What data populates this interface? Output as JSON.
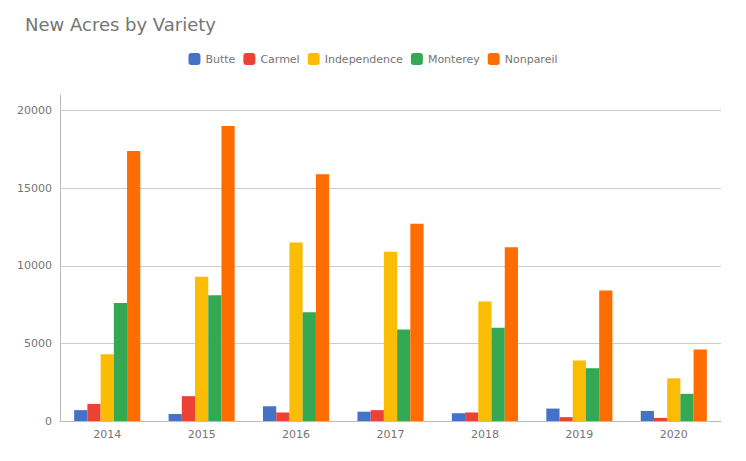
{
  "chart_data": {
    "type": "bar",
    "title": "New Acres by Variety",
    "categories": [
      "2014",
      "2015",
      "2016",
      "2017",
      "2018",
      "2019",
      "2020"
    ],
    "series": [
      {
        "name": "Butte",
        "color": "#4472C4",
        "values": [
          700,
          450,
          950,
          600,
          500,
          800,
          650
        ]
      },
      {
        "name": "Carmel",
        "color": "#EA4335",
        "values": [
          1100,
          1600,
          550,
          700,
          550,
          250,
          200
        ]
      },
      {
        "name": "Independence",
        "color": "#FBBC04",
        "values": [
          4300,
          9300,
          11500,
          10900,
          7700,
          3900,
          2750
        ]
      },
      {
        "name": "Monterey",
        "color": "#34A853",
        "values": [
          7600,
          8100,
          7000,
          5900,
          6000,
          3400,
          1750
        ]
      },
      {
        "name": "Nonpareil",
        "color": "#FF6D00",
        "values": [
          17400,
          19000,
          15900,
          12700,
          11200,
          8400,
          4600
        ]
      }
    ],
    "ylim": [
      0,
      21000
    ],
    "yticks": [
      0,
      5000,
      10000,
      15000,
      20000
    ],
    "grid": true,
    "legend": "top"
  }
}
